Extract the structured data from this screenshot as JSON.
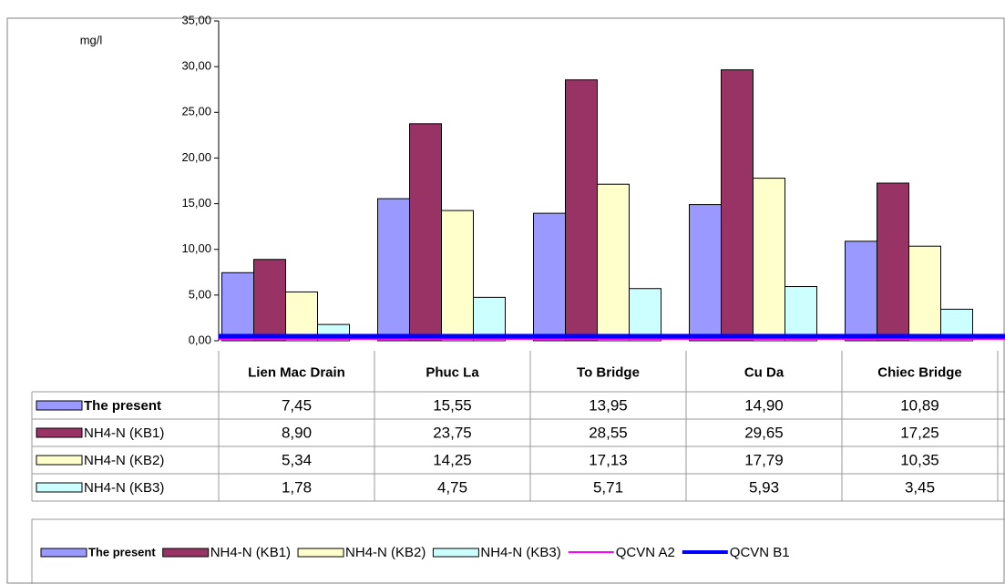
{
  "chart_data": {
    "type": "bar",
    "ylabel": "mg/l",
    "categories": [
      "Lien Mac Drain",
      "Phuc La",
      "To Bridge",
      "Cu Da",
      "Chiec Bridge"
    ],
    "ylim": [
      0,
      35
    ],
    "yticks": [
      {
        "value": 0,
        "label": "0,00"
      },
      {
        "value": 5,
        "label": "5,00"
      },
      {
        "value": 10,
        "label": "10,00"
      },
      {
        "value": 15,
        "label": "15,00"
      },
      {
        "value": 20,
        "label": "20,00"
      },
      {
        "value": 25,
        "label": "25,00"
      },
      {
        "value": 30,
        "label": "30,00"
      },
      {
        "value": 35,
        "label": "35,00"
      }
    ],
    "series": [
      {
        "name": "The present",
        "style": "bar",
        "color": "#9999ff",
        "values": [
          7.45,
          15.55,
          13.95,
          14.9,
          10.89
        ],
        "value_labels": [
          "7,45",
          "15,55",
          "13,95",
          "14,90",
          "10,89"
        ]
      },
      {
        "name": "NH4-N (KB1)",
        "style": "bar",
        "color": "#993366",
        "values": [
          8.9,
          23.75,
          28.55,
          29.65,
          17.25
        ],
        "value_labels": [
          "8,90",
          "23,75",
          "28,55",
          "29,65",
          "17,25"
        ]
      },
      {
        "name": "NH4-N (KB2)",
        "style": "bar",
        "color": "#ffffcc",
        "values": [
          5.34,
          14.25,
          17.13,
          17.79,
          10.35
        ],
        "value_labels": [
          "5,34",
          "14,25",
          "17,13",
          "17,79",
          "10,35"
        ]
      },
      {
        "name": "NH4-N (KB3)",
        "style": "bar",
        "color": "#ccffff",
        "values": [
          1.78,
          4.75,
          5.71,
          5.93,
          3.45
        ],
        "value_labels": [
          "1,78",
          "4,75",
          "5,71",
          "5,93",
          "3,45"
        ]
      },
      {
        "name": "QCVN A2",
        "style": "line",
        "color": "#ff00ff",
        "values": [
          0.2,
          0.2,
          0.2,
          0.2,
          0.2
        ]
      },
      {
        "name": "QCVN B1",
        "style": "line",
        "color": "#0000ff",
        "values": [
          0.5,
          0.5,
          0.5,
          0.5,
          0.5
        ]
      }
    ]
  }
}
